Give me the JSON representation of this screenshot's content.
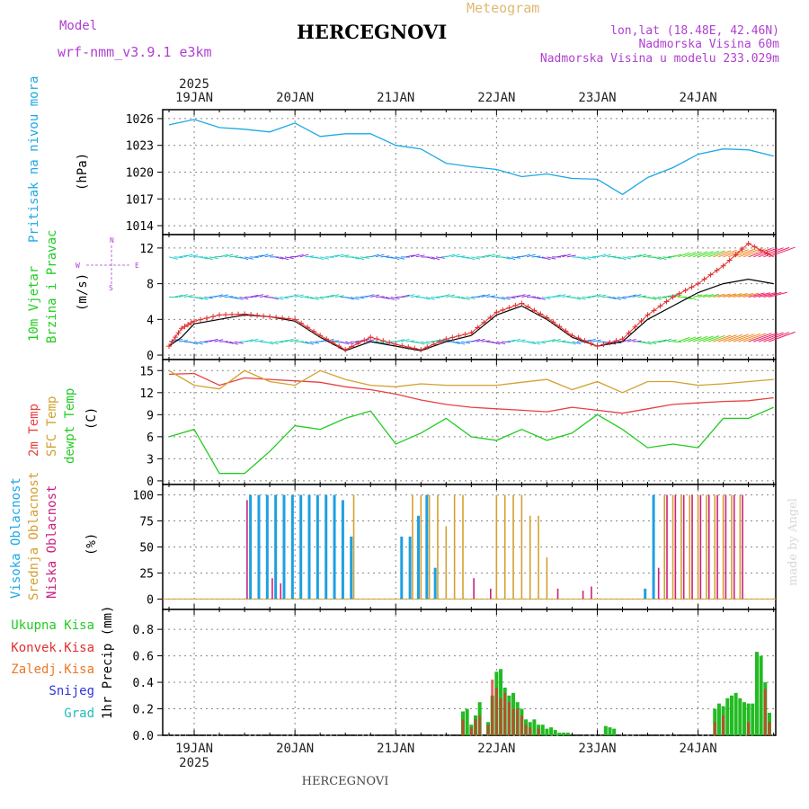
{
  "header": {
    "model_label": "Model",
    "model_name": "wrf-nmm_v3.9.1 e3km",
    "title": "HERCEGNOVI",
    "subtitle": "Meteogram",
    "coords": "lon,lat (18.48E, 42.46N)",
    "altitude": "Nadmorska Visina 60m",
    "model_altitude": "Nadmorska Visina u modelu 233.029m",
    "footer_title": "HERCEGNOVI",
    "watermark": "made by Angel"
  },
  "colors": {
    "pressure": "#1ea8e6",
    "wind_black": "#000000",
    "wind_red": "#e03030",
    "temp2m": "#e84040",
    "sfc_temp": "#d4a030",
    "dewpt": "#22cc22",
    "high_cloud": "#1ea0e0",
    "mid_cloud": "#d4a030",
    "low_cloud": "#cc2080",
    "total_precip": "#22bb22",
    "conv_precip": "#e03030",
    "frozen": "#ee7722",
    "snow": "#3333dd",
    "graupel": "#22bbbb"
  },
  "chart_data": [
    {
      "type": "line",
      "title": "Pritisak na nivou mora",
      "ylabel": "(hPa)",
      "ylim": [
        1013,
        1027
      ],
      "yticks": [
        1014,
        1017,
        1020,
        1023,
        1026
      ],
      "x_days": [
        "19JAN",
        "20JAN",
        "21JAN",
        "22JAN",
        "23JAN",
        "24JAN"
      ],
      "x_year": "2025",
      "x_hours": [
        -6,
        0,
        6,
        12,
        18,
        24,
        30,
        36,
        42,
        48,
        54,
        60,
        66,
        72,
        78,
        84,
        90,
        96,
        102,
        108,
        114,
        120,
        126,
        132,
        138
      ],
      "series": [
        {
          "name": "Pritisak",
          "values": [
            1025.3,
            1025.9,
            1025.0,
            1024.8,
            1024.5,
            1025.5,
            1024.0,
            1024.3,
            1024.3,
            1023.0,
            1022.6,
            1021.0,
            1020.6,
            1020.3,
            1019.5,
            1019.8,
            1019.3,
            1019.2,
            1017.5,
            1019.4,
            1020.5,
            1022.0,
            1022.6,
            1022.5,
            1021.8
          ]
        }
      ]
    },
    {
      "type": "line",
      "title": "10m Vjetar Brzina i Pravac",
      "ylabel": "(m/s)",
      "direction_legend": [
        "N",
        "E",
        "S",
        "W"
      ],
      "ylim": [
        -0.5,
        13.5
      ],
      "yticks": [
        0,
        4,
        8,
        12
      ],
      "series": [
        {
          "name": "wind speed",
          "x_hours": [
            -6,
            -3,
            0,
            6,
            12,
            18,
            24,
            30,
            36,
            42,
            48,
            54,
            60,
            66,
            72,
            78,
            84,
            90,
            96,
            102,
            108,
            114,
            120,
            126,
            132,
            138
          ],
          "values": [
            1.0,
            2.0,
            3.5,
            4.0,
            4.5,
            4.3,
            3.8,
            2.0,
            0.5,
            1.5,
            1.0,
            0.5,
            1.5,
            2.2,
            4.5,
            5.5,
            4.0,
            2.0,
            1.0,
            1.5,
            4.0,
            5.5,
            7.0,
            8.0,
            8.5,
            8.0
          ]
        },
        {
          "name": "wind gust",
          "x_hours": [
            -6,
            -3,
            0,
            6,
            12,
            18,
            24,
            30,
            36,
            42,
            48,
            54,
            60,
            66,
            72,
            78,
            84,
            90,
            96,
            102,
            108,
            114,
            120,
            126,
            132,
            138
          ],
          "values": [
            1.0,
            3.0,
            3.8,
            4.5,
            4.6,
            4.3,
            4.0,
            2.2,
            0.6,
            2.0,
            1.2,
            0.6,
            1.8,
            2.5,
            4.8,
            5.8,
            4.2,
            2.2,
            1.0,
            1.8,
            4.5,
            6.5,
            8.0,
            10.0,
            12.5,
            11.0
          ]
        }
      ]
    },
    {
      "type": "line",
      "title": "2m Temp / SFC Temp / dewpt Temp",
      "ylabel": "(C)",
      "ylim": [
        -0.5,
        16.5
      ],
      "yticks": [
        0,
        3,
        6,
        9,
        12,
        15
      ],
      "x_hours": [
        -6,
        0,
        6,
        12,
        18,
        24,
        30,
        36,
        42,
        48,
        54,
        60,
        66,
        72,
        78,
        84,
        90,
        96,
        102,
        108,
        114,
        120,
        126,
        132,
        138
      ],
      "series": [
        {
          "name": "2m Temp",
          "values": [
            14.5,
            14.6,
            13.0,
            14.0,
            13.8,
            13.6,
            13.4,
            12.8,
            12.4,
            11.8,
            11.0,
            10.4,
            10.0,
            9.8,
            9.6,
            9.4,
            10.0,
            9.6,
            9.2,
            9.8,
            10.4,
            10.6,
            10.8,
            10.9,
            11.3
          ]
        },
        {
          "name": "SFC Temp",
          "values": [
            15.0,
            13.0,
            12.5,
            15.0,
            13.5,
            13.0,
            15.0,
            13.8,
            13.0,
            12.8,
            13.2,
            13.0,
            13.0,
            13.0,
            13.4,
            13.8,
            12.4,
            13.5,
            12.0,
            13.5,
            13.5,
            13.0,
            13.2,
            13.5,
            13.8
          ]
        },
        {
          "name": "dewpt Temp",
          "values": [
            6.0,
            7.0,
            1.0,
            1.0,
            4.0,
            7.5,
            7.0,
            8.5,
            9.5,
            5.0,
            6.5,
            8.5,
            6.0,
            5.5,
            7.0,
            5.5,
            6.5,
            9.0,
            7.0,
            4.5,
            5.0,
            4.5,
            8.5,
            8.5,
            10.0
          ]
        }
      ]
    },
    {
      "type": "bar",
      "title": "Visoka Oblacnost / Srednja Oblacnost / Niska Oblacnost",
      "ylabel": "(%)",
      "ylim": [
        -10,
        110
      ],
      "yticks": [
        0,
        25,
        50,
        75,
        100
      ],
      "series": [
        {
          "name": "Visoka Oblacnost",
          "x_hours": [
            14,
            16,
            18,
            20,
            22,
            24,
            26,
            28,
            30,
            32,
            34,
            36,
            38,
            50,
            52,
            54,
            56,
            58,
            108,
            110
          ],
          "values": [
            100,
            100,
            100,
            100,
            100,
            100,
            100,
            100,
            100,
            100,
            100,
            95,
            60,
            60,
            60,
            80,
            100,
            30,
            10,
            100
          ]
        },
        {
          "name": "Srednja Oblacnost",
          "x_hours": [
            38,
            52,
            54,
            56,
            58,
            60,
            62,
            64,
            72,
            74,
            76,
            78,
            80,
            82,
            84,
            112,
            114,
            116,
            118,
            120,
            122,
            124,
            126,
            128,
            130
          ],
          "values": [
            100,
            100,
            100,
            100,
            100,
            70,
            100,
            100,
            100,
            100,
            100,
            100,
            80,
            80,
            40,
            100,
            100,
            100,
            100,
            100,
            100,
            100,
            100,
            100,
            100
          ]
        },
        {
          "name": "Niska Oblacnost",
          "x_hours": [
            12,
            18,
            20,
            66,
            70,
            86,
            92,
            94,
            110,
            112,
            114,
            116,
            118,
            120,
            122,
            124,
            126,
            128,
            130
          ],
          "values": [
            95,
            20,
            15,
            20,
            10,
            10,
            8,
            12,
            30,
            100,
            100,
            100,
            100,
            100,
            100,
            100,
            100,
            100,
            100
          ]
        }
      ]
    },
    {
      "type": "bar",
      "title": "1hr Precip",
      "ylabel": "1hr Precip (mm)",
      "ylim": [
        0,
        0.95
      ],
      "yticks": [
        0.0,
        0.2,
        0.4,
        0.6,
        0.8
      ],
      "series": [
        {
          "name": "Ukupna Kisa",
          "x_hours": [
            64,
            65,
            66,
            67,
            68,
            70,
            71,
            72,
            73,
            74,
            75,
            76,
            77,
            78,
            79,
            80,
            81,
            82,
            83,
            84,
            85,
            86,
            87,
            88,
            89,
            98,
            99,
            100,
            124,
            125,
            126,
            127,
            128,
            129,
            130,
            131,
            132,
            133,
            134,
            135,
            136,
            137
          ],
          "values": [
            0.18,
            0.2,
            0.08,
            0.15,
            0.25,
            0.1,
            0.3,
            0.48,
            0.5,
            0.36,
            0.3,
            0.32,
            0.25,
            0.2,
            0.12,
            0.1,
            0.12,
            0.08,
            0.08,
            0.05,
            0.06,
            0.04,
            0.02,
            0.02,
            0.02,
            0.07,
            0.06,
            0.05,
            0.2,
            0.24,
            0.22,
            0.28,
            0.3,
            0.32,
            0.28,
            0.25,
            0.24,
            0.24,
            0.63,
            0.6,
            0.4,
            0.17
          ]
        },
        {
          "name": "Konvek.Kisa",
          "x_hours": [
            64,
            66,
            67,
            68,
            70,
            71,
            72,
            73,
            74,
            75,
            76,
            77,
            78,
            79,
            80,
            82,
            124,
            126,
            132,
            136,
            137
          ],
          "values": [
            0.12,
            0.06,
            0.12,
            0.15,
            0.08,
            0.42,
            0.36,
            0.28,
            0.32,
            0.25,
            0.2,
            0.2,
            0.15,
            0.08,
            0.06,
            0.05,
            0.1,
            0.15,
            0.1,
            0.35,
            0.1
          ]
        }
      ]
    }
  ],
  "legend": {
    "pressure": "Pritisak na nivou mora",
    "pressure_unit": "(hPa)",
    "wind_line1": "10m Vjetar",
    "wind_line2": "Brzina i Pravac",
    "wind_unit": "(m/s)",
    "wind_dir": [
      "N",
      "E",
      "S",
      "W"
    ],
    "t2m": "2m Temp",
    "sfc": "SFC Temp",
    "dewpt": "dewpt Temp",
    "temp_unit": "(C)",
    "high": "Visoka Oblacnost",
    "mid": "Srednja Oblacnost",
    "low": "Niska Oblacnost",
    "cloud_unit": "(%)",
    "p_total": "Ukupna Kisa",
    "p_conv": "Konvek.Kisa",
    "p_frozen": "Zaledj.Kisa",
    "p_snow": "Snijeg",
    "p_graupel": "Grad",
    "precip_unit": "1hr Precip (mm)"
  }
}
